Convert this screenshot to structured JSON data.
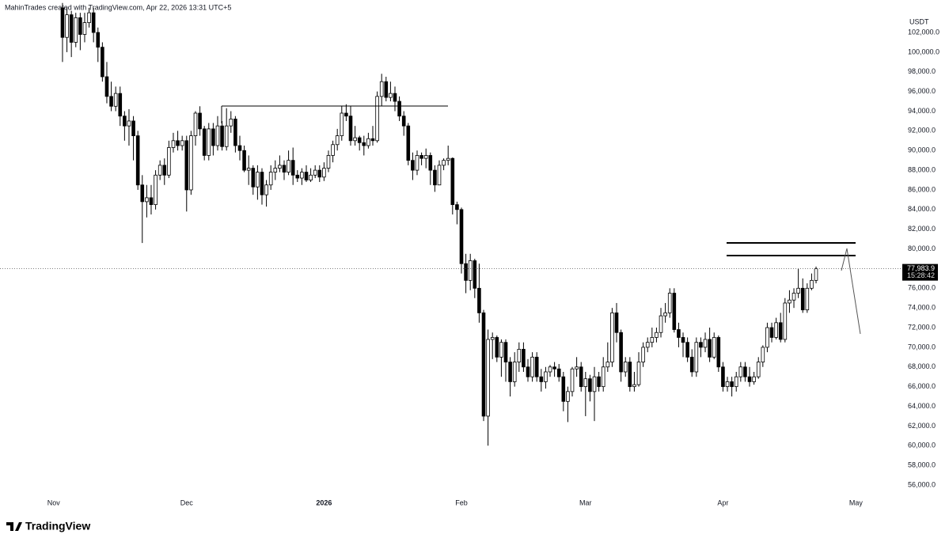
{
  "header": {
    "credit": "MahinTrades created with TradingView.com, Apr 22, 2026 13:31 UTC+5"
  },
  "chart_data": {
    "type": "candlestick",
    "currency": "USDT",
    "up_color": "#ffffff",
    "down_color": "#000000",
    "outline_color": "#000000",
    "x": [
      2,
      3,
      4,
      5,
      6,
      7,
      8,
      9,
      10,
      11,
      12,
      13,
      14,
      15,
      16,
      17,
      18,
      19,
      20,
      21,
      22,
      23,
      24,
      25,
      26,
      27,
      28,
      29,
      30,
      31,
      32,
      33,
      34,
      35,
      36,
      37,
      38,
      39,
      40,
      41,
      42,
      43,
      44,
      45,
      46,
      47,
      48,
      49,
      50,
      51,
      52,
      53,
      54,
      55,
      56,
      57,
      58,
      59,
      60,
      61,
      62,
      63,
      64,
      65,
      66,
      67,
      68,
      69,
      70,
      71,
      72,
      73,
      74,
      75,
      76,
      77,
      78,
      79,
      80,
      81,
      82,
      83,
      84,
      85,
      86,
      87,
      88,
      89,
      90,
      91,
      92,
      93,
      94,
      95,
      96,
      97,
      98,
      99,
      100,
      101,
      102,
      103,
      104,
      105,
      106,
      107,
      108,
      109,
      110,
      111,
      112,
      113,
      114,
      115,
      116,
      117,
      118,
      119,
      120,
      121,
      122,
      123,
      124,
      125,
      126,
      127,
      128,
      129,
      130,
      131,
      132,
      133,
      134,
      135,
      136,
      137,
      138,
      139,
      140,
      141,
      142,
      143,
      144,
      145,
      146,
      147,
      148,
      149,
      150,
      151,
      152,
      153,
      154,
      155,
      156,
      157,
      158,
      159,
      160,
      161,
      162,
      163,
      164,
      165,
      166,
      167,
      168,
      169,
      170,
      171,
      172
    ],
    "open": [
      104500,
      101500,
      103800,
      101000,
      103500,
      101800,
      103000,
      104000,
      102000,
      100500,
      97500,
      95500,
      94500,
      95800,
      93500,
      92500,
      93000,
      91500,
      86500,
      84800,
      85200,
      84500,
      87500,
      88500,
      87500,
      90300,
      91000,
      90500,
      91000,
      86000,
      91500,
      93800,
      92200,
      89500,
      92200,
      90500,
      92500,
      90400,
      92500,
      93200,
      90500,
      90000,
      88000,
      88200,
      86300,
      87800,
      85500,
      86500,
      87800,
      88200,
      88500,
      87800,
      89000,
      87500,
      87200,
      87800,
      87000,
      87500,
      88000,
      87300,
      88200,
      89500,
      90600,
      91500,
      93800,
      93500,
      91000,
      91300,
      90800,
      90500,
      91200,
      91000,
      95500,
      97000,
      95400,
      95800,
      95000,
      93500,
      92500,
      89000,
      88000,
      89500,
      89200,
      89500,
      88000,
      86500,
      88500,
      89000,
      89200,
      84500,
      84000,
      78500,
      76800,
      78800,
      76000,
      73500,
      63000,
      70800,
      71000,
      69000,
      70500,
      68500,
      66500,
      68500,
      69800,
      68000,
      67000,
      69000,
      67000,
      66500,
      67500,
      68000,
      67800,
      67000,
      64500,
      65500,
      67800,
      68000,
      66000,
      66800,
      65500,
      67000,
      66000,
      68000,
      68500,
      73500,
      71500,
      67500,
      68500,
      66000,
      66200,
      68500,
      70000,
      70500,
      71000,
      71500,
      73200,
      73500,
      75500,
      71800,
      71000,
      70500,
      69000,
      67500,
      70500,
      70000,
      70800,
      69000,
      71000,
      68000,
      66000,
      66500,
      66000,
      67000,
      68000,
      67000,
      66500,
      67000,
      68500,
      70000,
      72000,
      71000,
      72500,
      70800,
      74500,
      74800,
      75500,
      76000,
      73800,
      76000,
      76800
    ],
    "high": [
      105000,
      104500,
      104200,
      104000,
      104000,
      104000,
      104500,
      104500,
      102500,
      101000,
      99000,
      97000,
      96500,
      96500,
      94000,
      94200,
      93500,
      92000,
      87500,
      86500,
      86500,
      88000,
      89000,
      89200,
      91000,
      91800,
      92000,
      91500,
      91500,
      92000,
      94000,
      94500,
      92500,
      92800,
      92800,
      93500,
      93000,
      94300,
      94000,
      93500,
      91500,
      90500,
      89500,
      88500,
      88500,
      88200,
      87000,
      88500,
      89000,
      89500,
      89000,
      90000,
      90300,
      88000,
      88200,
      88500,
      88200,
      88500,
      88500,
      88800,
      90000,
      91000,
      92200,
      94500,
      94700,
      94500,
      92500,
      91500,
      91500,
      91800,
      92500,
      96000,
      97800,
      97500,
      97000,
      96500,
      95500,
      94000,
      92800,
      89800,
      90000,
      89800,
      90200,
      89800,
      88500,
      89000,
      89200,
      90500,
      89300,
      84800,
      84200,
      79500,
      79500,
      79000,
      78500,
      73800,
      71800,
      71500,
      71200,
      70800,
      70800,
      69000,
      69500,
      70500,
      70500,
      68800,
      69500,
      69500,
      67800,
      68000,
      68200,
      68500,
      68300,
      67500,
      66000,
      68000,
      69000,
      68500,
      67500,
      67200,
      68000,
      67500,
      69000,
      70500,
      74000,
      74500,
      71800,
      69000,
      69000,
      67500,
      69500,
      70500,
      71000,
      72000,
      72000,
      74000,
      74500,
      76000,
      76000,
      72500,
      71500,
      71000,
      69800,
      71000,
      71000,
      71500,
      72000,
      71500,
      71200,
      68500,
      67000,
      67000,
      67500,
      68500,
      68500,
      68000,
      67500,
      69000,
      70200,
      72500,
      72500,
      73000,
      73500,
      75000,
      75800,
      76000,
      78000,
      77000,
      76500,
      77500,
      78200
    ],
    "low": [
      99000,
      100000,
      99500,
      100500,
      100200,
      101000,
      102500,
      101000,
      99000,
      97000,
      94800,
      94000,
      94000,
      92500,
      91000,
      90500,
      89000,
      86000,
      80600,
      83200,
      83500,
      84000,
      87000,
      86500,
      87200,
      89800,
      90000,
      90000,
      83800,
      85500,
      90500,
      91500,
      89000,
      89000,
      89500,
      90000,
      90000,
      90000,
      91800,
      89800,
      89000,
      87800,
      86500,
      85500,
      85000,
      84500,
      84300,
      86000,
      87000,
      87800,
      87000,
      87500,
      86500,
      86800,
      86500,
      86800,
      86800,
      87200,
      86800,
      86900,
      87800,
      88800,
      90000,
      91000,
      93000,
      90500,
      90500,
      90000,
      89500,
      90200,
      90500,
      90800,
      94500,
      95000,
      95000,
      94000,
      93000,
      91500,
      88500,
      87000,
      87500,
      88500,
      88200,
      86500,
      85800,
      86500,
      88000,
      88500,
      83500,
      82500,
      77500,
      75500,
      75800,
      75000,
      72500,
      62500,
      60000,
      68800,
      68500,
      67000,
      66500,
      65000,
      66000,
      67500,
      67500,
      66500,
      66500,
      66500,
      65500,
      65800,
      67000,
      67000,
      66500,
      63500,
      62400,
      65000,
      67000,
      65500,
      63000,
      64500,
      62500,
      65500,
      65500,
      67500,
      68000,
      70500,
      66500,
      67000,
      65500,
      65500,
      66000,
      68000,
      69500,
      70000,
      70500,
      71000,
      72500,
      73000,
      71500,
      70000,
      69000,
      68500,
      67000,
      67000,
      69000,
      69500,
      68500,
      68800,
      67500,
      65500,
      65500,
      65000,
      65500,
      66500,
      66500,
      66000,
      66200,
      66800,
      68000,
      69500,
      70500,
      70800,
      70500,
      70500,
      73500,
      74000,
      75000,
      73500,
      73500,
      75800,
      76500
    ],
    "close": [
      101500,
      103800,
      101000,
      103500,
      101800,
      103000,
      104000,
      102000,
      100500,
      97500,
      95500,
      94500,
      95800,
      93500,
      92500,
      93000,
      91500,
      86500,
      84800,
      85200,
      84500,
      87500,
      88500,
      87500,
      90300,
      91000,
      90500,
      91000,
      86000,
      91500,
      93800,
      92200,
      89500,
      92200,
      90500,
      92500,
      90400,
      92500,
      93200,
      90500,
      90000,
      88000,
      88200,
      86300,
      87800,
      85500,
      86500,
      87800,
      88200,
      88500,
      87800,
      89000,
      87500,
      87200,
      87800,
      87000,
      87500,
      88000,
      87300,
      88200,
      89500,
      90600,
      91500,
      93800,
      93500,
      91000,
      91300,
      90800,
      90500,
      91200,
      91000,
      95500,
      97000,
      95400,
      95800,
      95000,
      93500,
      92500,
      89000,
      88000,
      89500,
      89200,
      89500,
      88000,
      86500,
      88500,
      89000,
      89200,
      84500,
      84000,
      78500,
      76800,
      78800,
      76000,
      73500,
      63000,
      70800,
      71000,
      69000,
      70500,
      68500,
      66500,
      68500,
      69800,
      68000,
      67000,
      69000,
      67000,
      66500,
      67500,
      68000,
      67800,
      67000,
      64500,
      65500,
      67800,
      68000,
      66000,
      66800,
      65500,
      67000,
      66000,
      68000,
      68500,
      73500,
      71500,
      67500,
      68500,
      66000,
      66200,
      68500,
      70000,
      70500,
      71000,
      71500,
      73200,
      73500,
      75500,
      71800,
      71000,
      70500,
      69000,
      67500,
      70500,
      70000,
      70800,
      69000,
      71000,
      68000,
      66000,
      66500,
      66000,
      67000,
      68000,
      67000,
      66500,
      67000,
      68500,
      70000,
      72000,
      71000,
      72500,
      70800,
      74500,
      74800,
      75500,
      76000,
      73800,
      76000,
      76800,
      77983.9
    ],
    "last_price": {
      "value": 77983.9,
      "label": "77,983.9"
    },
    "countdown": "15:28:42",
    "xlim": [
      -12.1,
      191.1
    ],
    "xticks": [
      {
        "value": 0,
        "label": "Nov"
      },
      {
        "value": 30,
        "label": "Dec"
      },
      {
        "value": 61,
        "label": "2026"
      },
      {
        "value": 92,
        "label": "Feb"
      },
      {
        "value": 120,
        "label": "Mar"
      },
      {
        "value": 151,
        "label": "Apr"
      },
      {
        "value": 181,
        "label": "May"
      }
    ],
    "ylim": [
      54470,
      105300
    ],
    "yticks": [
      {
        "value": 56000,
        "label": "56,000.0"
      },
      {
        "value": 58000,
        "label": "58,000.0"
      },
      {
        "value": 60000,
        "label": "60,000.0"
      },
      {
        "value": 62000,
        "label": "62,000.0"
      },
      {
        "value": 64000,
        "label": "64,000.0"
      },
      {
        "value": 66000,
        "label": "66,000.0"
      },
      {
        "value": 68000,
        "label": "68,000.0"
      },
      {
        "value": 70000,
        "label": "70,000.0"
      },
      {
        "value": 72000,
        "label": "72,000.0"
      },
      {
        "value": 74000,
        "label": "74,000.0"
      },
      {
        "value": 76000,
        "label": "76,000.0"
      },
      {
        "value": 78000,
        "label": "78,000.0"
      },
      {
        "value": 80000,
        "label": "80,000.0"
      },
      {
        "value": 82000,
        "label": "82,000.0"
      },
      {
        "value": 84000,
        "label": "84,000.0"
      },
      {
        "value": 86000,
        "label": "86,000.0"
      },
      {
        "value": 88000,
        "label": "88,000.0"
      },
      {
        "value": 90000,
        "label": "90,000.0"
      },
      {
        "value": 92000,
        "label": "92,000.0"
      },
      {
        "value": 94000,
        "label": "94,000.0"
      },
      {
        "value": 96000,
        "label": "96,000.0"
      },
      {
        "value": 98000,
        "label": "98,000.0"
      },
      {
        "value": 100000,
        "label": "100,000.0"
      },
      {
        "value": 102000,
        "label": "102,000.0"
      }
    ]
  },
  "footer": {
    "logo": "TradingView"
  }
}
